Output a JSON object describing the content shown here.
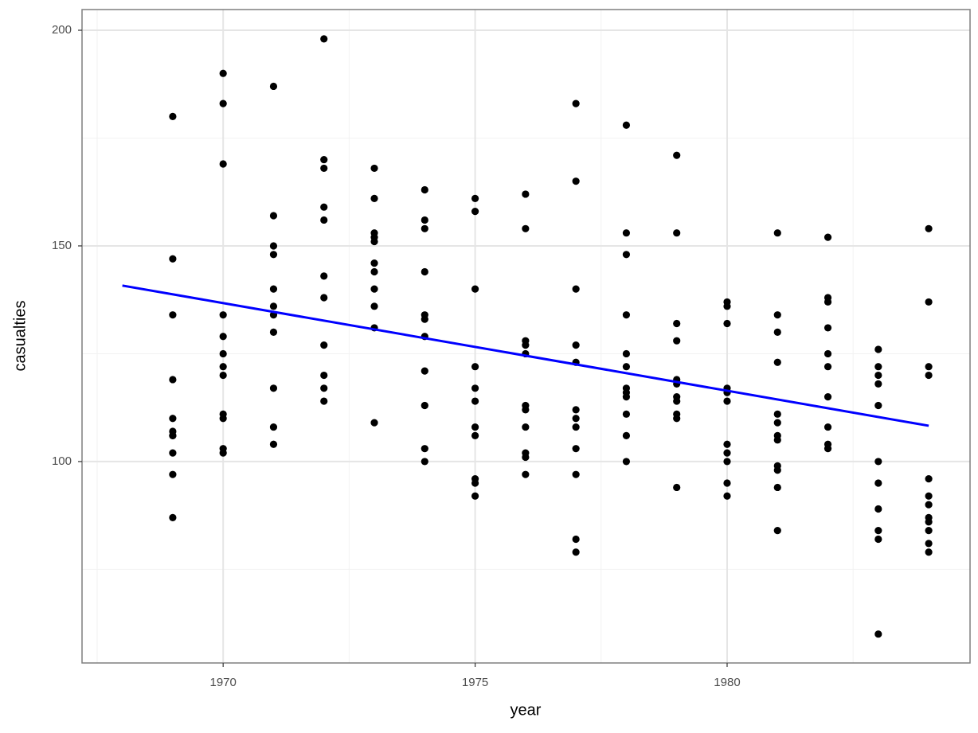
{
  "chart_data": {
    "type": "scatter",
    "x_label": "year",
    "y_label": "casualties",
    "xlim": [
      1967.2,
      1984.82
    ],
    "ylim": [
      53.3,
      204.8
    ],
    "xticks": [
      1970,
      1975,
      1980
    ],
    "yticks": [
      100,
      150,
      200
    ],
    "minor_xticks": [
      1967.5,
      1972.5,
      1977.5,
      1982.5
    ],
    "minor_yticks": [
      75,
      125,
      175
    ],
    "grid": true,
    "series": [
      {
        "color": "#000000",
        "x": [
          1969,
          1969,
          1969,
          1969,
          1969,
          1969,
          1969,
          1969,
          1969,
          1969,
          1969,
          1970,
          1970,
          1970,
          1970,
          1970,
          1970,
          1970,
          1970,
          1970,
          1970,
          1970,
          1970,
          1971,
          1971,
          1971,
          1971,
          1971,
          1971,
          1971,
          1971,
          1971,
          1971,
          1971,
          1972,
          1972,
          1972,
          1972,
          1972,
          1972,
          1972,
          1972,
          1972,
          1972,
          1972,
          1973,
          1973,
          1973,
          1973,
          1973,
          1973,
          1973,
          1973,
          1973,
          1973,
          1973,
          1974,
          1974,
          1974,
          1974,
          1974,
          1974,
          1974,
          1974,
          1974,
          1974,
          1974,
          1975,
          1975,
          1975,
          1975,
          1975,
          1975,
          1975,
          1975,
          1975,
          1975,
          1975,
          1976,
          1976,
          1976,
          1976,
          1976,
          1976,
          1976,
          1976,
          1976,
          1976,
          1976,
          1977,
          1977,
          1977,
          1977,
          1977,
          1977,
          1977,
          1977,
          1977,
          1977,
          1977,
          1977,
          1978,
          1978,
          1978,
          1978,
          1978,
          1978,
          1978,
          1978,
          1978,
          1978,
          1978,
          1978,
          1979,
          1979,
          1979,
          1979,
          1979,
          1979,
          1979,
          1979,
          1979,
          1979,
          1979,
          1980,
          1980,
          1980,
          1980,
          1980,
          1980,
          1980,
          1980,
          1980,
          1980,
          1980,
          1981,
          1981,
          1981,
          1981,
          1981,
          1981,
          1981,
          1981,
          1981,
          1981,
          1981,
          1981,
          1982,
          1982,
          1982,
          1982,
          1982,
          1982,
          1982,
          1982,
          1982,
          1982,
          1983,
          1983,
          1983,
          1983,
          1983,
          1983,
          1983,
          1983,
          1983,
          1983,
          1983,
          1984,
          1984,
          1984,
          1984,
          1984,
          1984,
          1984,
          1984,
          1984,
          1984,
          1984,
          1984
        ],
        "values": [
          180,
          147,
          134,
          119,
          110,
          107,
          106,
          106,
          102,
          97,
          87,
          190,
          183,
          169,
          134,
          129,
          125,
          122,
          120,
          111,
          110,
          103,
          102,
          187,
          157,
          150,
          148,
          140,
          136,
          134,
          130,
          117,
          108,
          104,
          198,
          170,
          168,
          159,
          156,
          143,
          138,
          127,
          120,
          117,
          114,
          168,
          161,
          153,
          152,
          151,
          146,
          144,
          140,
          136,
          131,
          109,
          163,
          156,
          154,
          144,
          134,
          133,
          129,
          121,
          113,
          103,
          100,
          161,
          158,
          140,
          122,
          117,
          114,
          108,
          106,
          96,
          95,
          92,
          162,
          154,
          128,
          127,
          125,
          113,
          112,
          108,
          102,
          101,
          97,
          183,
          165,
          140,
          127,
          123,
          112,
          110,
          108,
          103,
          97,
          82,
          79,
          178,
          153,
          148,
          134,
          125,
          122,
          117,
          116,
          115,
          111,
          106,
          100,
          171,
          153,
          132,
          128,
          119,
          118,
          115,
          114,
          111,
          110,
          94,
          137,
          136,
          132,
          117,
          116,
          114,
          104,
          102,
          100,
          95,
          92,
          153,
          134,
          130,
          123,
          111,
          109,
          106,
          105,
          99,
          98,
          94,
          84,
          152,
          138,
          137,
          131,
          125,
          122,
          115,
          108,
          104,
          103,
          126,
          122,
          120,
          118,
          113,
          100,
          95,
          89,
          84,
          82,
          60,
          154,
          137,
          122,
          120,
          96,
          92,
          90,
          87,
          86,
          84,
          81,
          79
        ]
      }
    ],
    "trend_line": {
      "color": "#0000ff",
      "x": [
        1968,
        1984
      ],
      "values": [
        140.8,
        108.3
      ]
    }
  }
}
